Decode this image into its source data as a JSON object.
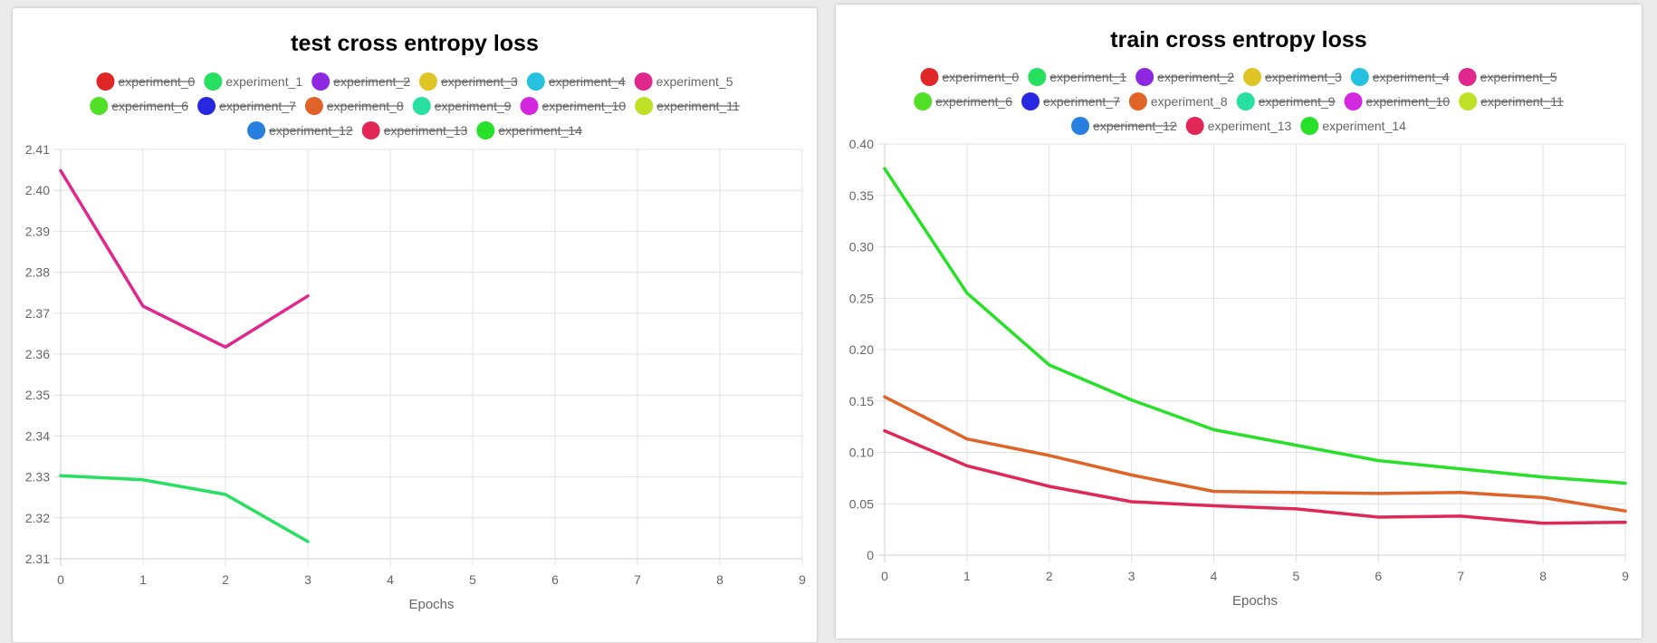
{
  "colors": {
    "experiment_0": "#e02727",
    "experiment_1": "#27e060",
    "experiment_2": "#8d27e0",
    "experiment_3": "#e0c527",
    "experiment_4": "#27c1e0",
    "experiment_5": "#e0278e",
    "experiment_6": "#52e027",
    "experiment_7": "#2727e0",
    "experiment_8": "#e06327",
    "experiment_9": "#27e0a0",
    "experiment_10": "#d327e0",
    "experiment_11": "#bee027",
    "experiment_12": "#277fe0",
    "experiment_13": "#e02755",
    "experiment_14": "#27e027"
  },
  "chart_data": [
    {
      "type": "line",
      "title": "test cross entropy loss",
      "xlabel": "Epochs",
      "ylabel": "",
      "x_ticks": [
        "0",
        "1",
        "2",
        "3",
        "4",
        "5",
        "6",
        "7",
        "8",
        "9"
      ],
      "y_ticks": [
        "2.31",
        "2.32",
        "2.33",
        "2.34",
        "2.35",
        "2.36",
        "2.37",
        "2.38",
        "2.39",
        "2.40",
        "2.41"
      ],
      "xlim": [
        0,
        9
      ],
      "ylim": [
        2.31,
        2.41
      ],
      "grid": true,
      "legend_position": "top",
      "legend": [
        {
          "name": "experiment_0",
          "hidden": true
        },
        {
          "name": "experiment_1",
          "hidden": false
        },
        {
          "name": "experiment_2",
          "hidden": true
        },
        {
          "name": "experiment_3",
          "hidden": true
        },
        {
          "name": "experiment_4",
          "hidden": true
        },
        {
          "name": "experiment_5",
          "hidden": false
        },
        {
          "name": "experiment_6",
          "hidden": true
        },
        {
          "name": "experiment_7",
          "hidden": true
        },
        {
          "name": "experiment_8",
          "hidden": true
        },
        {
          "name": "experiment_9",
          "hidden": true
        },
        {
          "name": "experiment_10",
          "hidden": true
        },
        {
          "name": "experiment_11",
          "hidden": true
        },
        {
          "name": "experiment_12",
          "hidden": true
        },
        {
          "name": "experiment_13",
          "hidden": true
        },
        {
          "name": "experiment_14",
          "hidden": true
        }
      ],
      "series": [
        {
          "name": "experiment_1",
          "x": [
            0,
            1,
            2,
            3
          ],
          "values": [
            2.3303,
            2.3293,
            2.3257,
            2.3142
          ]
        },
        {
          "name": "experiment_5",
          "x": [
            0,
            1,
            2,
            3
          ],
          "values": [
            2.4048,
            2.3717,
            2.3617,
            2.3742
          ]
        }
      ]
    },
    {
      "type": "line",
      "title": "train cross entropy loss",
      "xlabel": "Epochs",
      "ylabel": "",
      "x_ticks": [
        "0",
        "1",
        "2",
        "3",
        "4",
        "5",
        "6",
        "7",
        "8",
        "9"
      ],
      "y_ticks": [
        "0",
        "0.05",
        "0.10",
        "0.15",
        "0.20",
        "0.25",
        "0.30",
        "0.35",
        "0.40"
      ],
      "xlim": [
        0,
        9
      ],
      "ylim": [
        0,
        0.4
      ],
      "grid": true,
      "legend_position": "top",
      "legend": [
        {
          "name": "experiment_0",
          "hidden": true
        },
        {
          "name": "experiment_1",
          "hidden": true
        },
        {
          "name": "experiment_2",
          "hidden": true
        },
        {
          "name": "experiment_3",
          "hidden": true
        },
        {
          "name": "experiment_4",
          "hidden": true
        },
        {
          "name": "experiment_5",
          "hidden": true
        },
        {
          "name": "experiment_6",
          "hidden": true
        },
        {
          "name": "experiment_7",
          "hidden": true
        },
        {
          "name": "experiment_8",
          "hidden": false
        },
        {
          "name": "experiment_9",
          "hidden": true
        },
        {
          "name": "experiment_10",
          "hidden": true
        },
        {
          "name": "experiment_11",
          "hidden": true
        },
        {
          "name": "experiment_12",
          "hidden": true
        },
        {
          "name": "experiment_13",
          "hidden": false
        },
        {
          "name": "experiment_14",
          "hidden": false
        }
      ],
      "series": [
        {
          "name": "experiment_8",
          "x": [
            0,
            1,
            2,
            3,
            4,
            5,
            6,
            7,
            8,
            9
          ],
          "values": [
            0.154,
            0.113,
            0.097,
            0.078,
            0.062,
            0.061,
            0.06,
            0.061,
            0.056,
            0.043
          ]
        },
        {
          "name": "experiment_13",
          "x": [
            0,
            1,
            2,
            3,
            4,
            5,
            6,
            7,
            8,
            9
          ],
          "values": [
            0.121,
            0.087,
            0.067,
            0.052,
            0.048,
            0.045,
            0.037,
            0.038,
            0.031,
            0.032
          ]
        },
        {
          "name": "experiment_14",
          "x": [
            0,
            1,
            2,
            3,
            4,
            5,
            6,
            7,
            8,
            9
          ],
          "values": [
            0.376,
            0.255,
            0.185,
            0.151,
            0.122,
            0.107,
            0.092,
            0.084,
            0.076,
            0.07
          ]
        }
      ]
    }
  ]
}
